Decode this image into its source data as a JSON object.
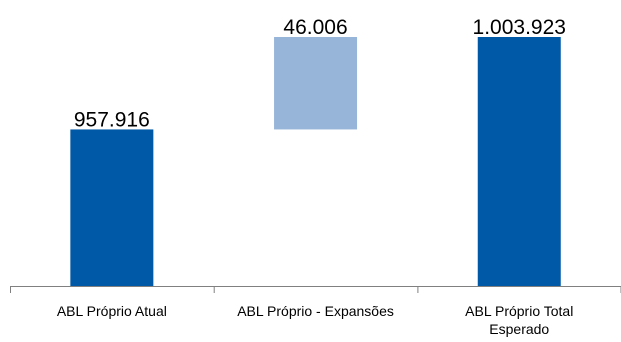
{
  "chart_data": {
    "type": "bar",
    "subtype": "waterfall",
    "categories": [
      [
        "ABL Próprio Atual"
      ],
      [
        "ABL Próprio - Expansões"
      ],
      [
        "ABL Próprio Total",
        "Esperado"
      ]
    ],
    "bars": [
      {
        "kind": "total",
        "base": 0,
        "value": 957916,
        "label": "957.916",
        "color": "#0059A6"
      },
      {
        "kind": "delta",
        "base": 957916,
        "value": 46006,
        "label": "46.006",
        "color": "#97B4D9"
      },
      {
        "kind": "total",
        "base": 0,
        "value": 1003923,
        "label": "1.003.923",
        "color": "#0059A6"
      }
    ],
    "title": "",
    "xlabel": "",
    "ylabel": "",
    "grid": false
  }
}
